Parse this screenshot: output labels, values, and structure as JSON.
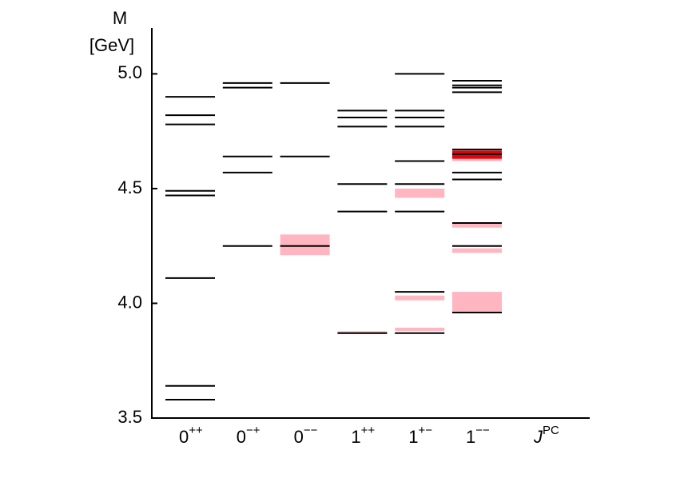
{
  "chart_data": {
    "type": "levels",
    "y_label": [
      "M",
      "[GeV]"
    ],
    "x_label": {
      "main": "J",
      "sup": "PC"
    },
    "ylim": [
      3.5,
      5.2
    ],
    "yticks": [
      3.5,
      {
        "value": 4,
        "label": "4.0"
      },
      4.5,
      {
        "value": 5,
        "label": "5.0"
      }
    ],
    "line_color": "#000000",
    "categories": [
      {
        "j": "0",
        "pc": "++",
        "levels": [
          4.9,
          4.82,
          4.78,
          4.49,
          4.47,
          4.11,
          3.64,
          3.58
        ],
        "bands": []
      },
      {
        "j": "0",
        "pc": "−+",
        "levels": [
          4.96,
          4.94,
          4.64,
          4.57,
          4.25
        ],
        "bands": []
      },
      {
        "j": "0",
        "pc": "−−",
        "levels": [
          4.96,
          4.64,
          4.25
        ],
        "bands": [
          {
            "range": [
              4.21,
              4.3
            ],
            "color": "#ffb6c1"
          }
        ]
      },
      {
        "j": "1",
        "pc": "++",
        "levels": [
          4.84,
          4.81,
          4.77,
          4.52,
          4.4,
          3.87
        ],
        "bands": [
          {
            "range": [
              3.866,
              3.878
            ],
            "color": "#ffb6c1"
          }
        ]
      },
      {
        "j": "1",
        "pc": "+−",
        "levels": [
          5.0,
          4.84,
          4.81,
          4.77,
          4.62,
          4.52,
          4.4,
          4.05,
          3.87
        ],
        "bands": [
          {
            "range": [
              4.46,
              4.5
            ],
            "color": "#ffb6c1"
          },
          {
            "range": [
              4.013,
              4.034
            ],
            "color": "#ffb6c1"
          },
          {
            "range": [
              3.88,
              3.894
            ],
            "color": "#ffb6c1"
          }
        ]
      },
      {
        "j": "1",
        "pc": "−−",
        "levels": [
          4.97,
          4.95,
          4.94,
          4.92,
          4.67,
          4.65,
          4.57,
          4.54,
          4.35,
          4.25,
          3.96
        ],
        "bands": [
          {
            "range": [
              4.62,
              4.675
            ],
            "color": "#ffb6c1"
          },
          {
            "range": [
              4.63,
              4.665
            ],
            "color": "#e8000b"
          },
          {
            "range": [
              4.33,
              4.35
            ],
            "color": "#ffb6c1"
          },
          {
            "range": [
              4.22,
              4.24
            ],
            "color": "#ffb6c1"
          },
          {
            "range": [
              3.96,
              4.05
            ],
            "color": "#ffb6c1"
          }
        ]
      }
    ]
  }
}
